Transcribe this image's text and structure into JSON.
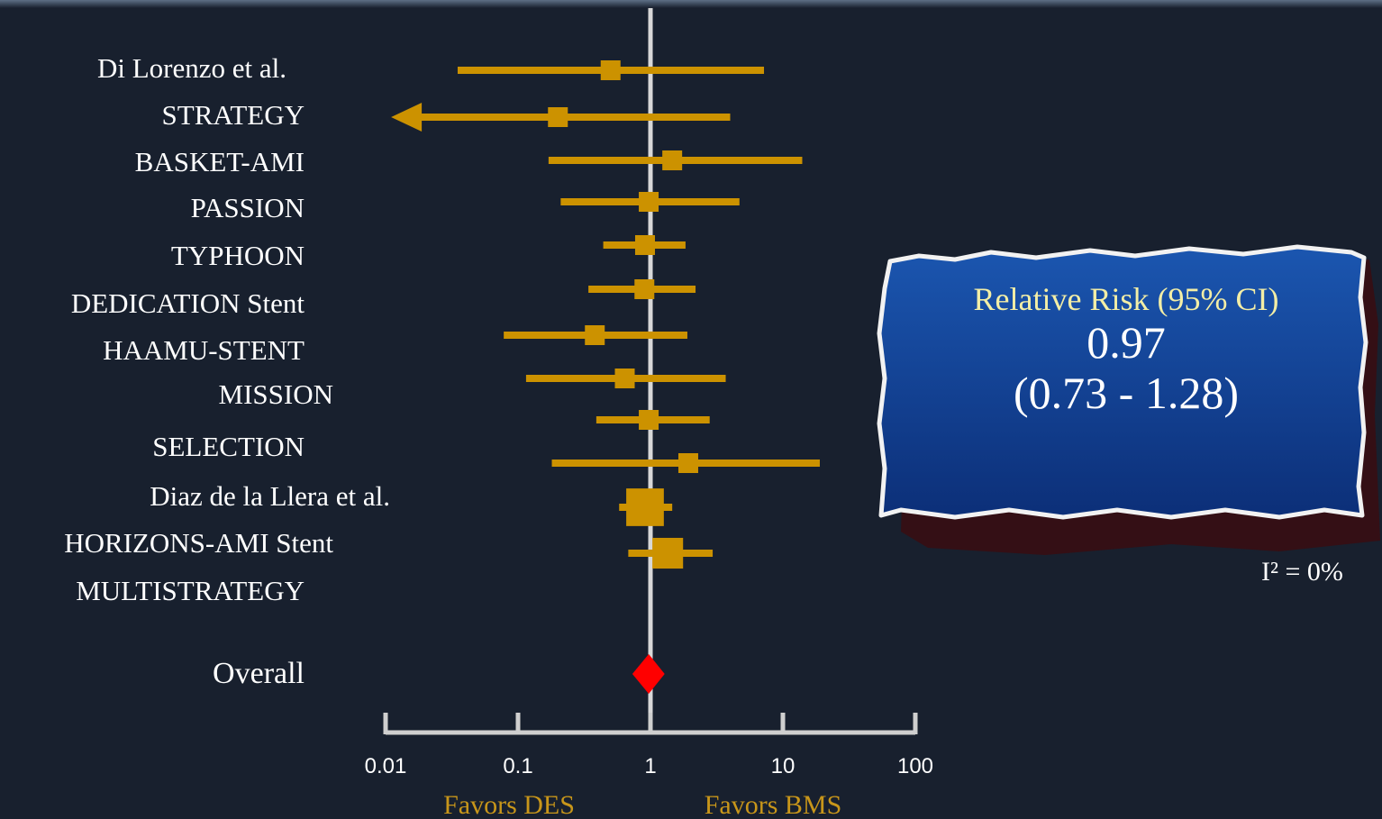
{
  "chart_data": {
    "type": "forest",
    "categories": [
      "Di Lorenzo et al.",
      "STRATEGY",
      "BASKET-AMI",
      "PASSION",
      "TYPHOON",
      "DEDICATION Stent",
      "HAAMU-STENT",
      "MISSION",
      "SELECTION",
      "Diaz de la Llera et al.",
      "HORIZONS-AMI Stent",
      "MULTISTRATEGY"
    ],
    "estimates": [
      0.5,
      0.2,
      1.46,
      0.97,
      0.91,
      0.9,
      0.38,
      0.64,
      0.97,
      1.93,
      0.91,
      1.35
    ],
    "lower": [
      0.035,
      0.011,
      0.17,
      0.21,
      0.44,
      0.34,
      0.078,
      0.115,
      0.39,
      0.18,
      0.58,
      0.68
    ],
    "upper": [
      7.2,
      4.0,
      14,
      4.7,
      1.84,
      2.19,
      1.9,
      3.7,
      2.8,
      19,
      1.46,
      2.95
    ],
    "lower_arrow": [
      false,
      true,
      false,
      false,
      false,
      false,
      false,
      false,
      false,
      false,
      false,
      false
    ],
    "weights": [
      1,
      1,
      1,
      1,
      1,
      1,
      1,
      1,
      1,
      1,
      3.6,
      2.4
    ],
    "color": "#cc9200",
    "overall": {
      "label": "Overall",
      "estimate": 0.97,
      "lower": 0.73,
      "upper": 1.28,
      "color": "#ff0000"
    },
    "summary_title": "Relative Risk (95% CI)",
    "summary_ci": "(0.73 - 1.28)",
    "heterogeneity": "I² = 0%",
    "xscale": "log",
    "xlim": [
      0.01,
      100
    ],
    "xticks": [
      0.01,
      0.1,
      1,
      10,
      100
    ],
    "reference_line": 1,
    "favors_left": "Favors DES",
    "favors_right": "Favors BMS"
  }
}
